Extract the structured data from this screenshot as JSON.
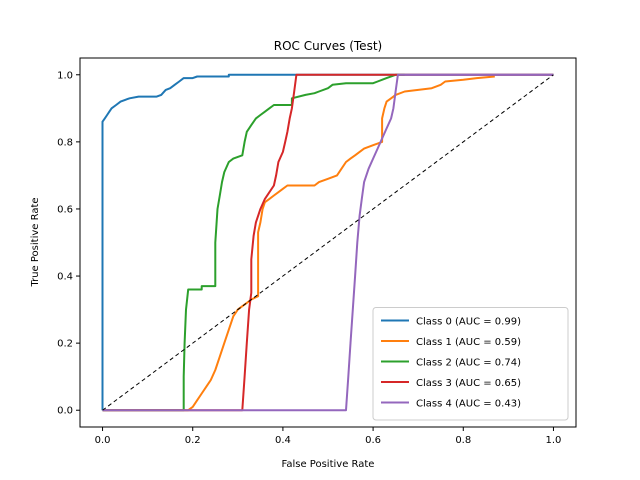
{
  "chart_data": {
    "type": "line",
    "title": "ROC Curves (Test)",
    "xlabel": "False Positive Rate",
    "ylabel": "True Positive Rate",
    "xlim": [
      -0.05,
      1.05
    ],
    "ylim": [
      -0.05,
      1.05
    ],
    "xticks": [
      "0.0",
      "0.2",
      "0.4",
      "0.6",
      "0.8",
      "1.0"
    ],
    "yticks": [
      "0.0",
      "0.2",
      "0.4",
      "0.6",
      "0.8",
      "1.0"
    ],
    "grid": false,
    "legend_position": "lower-right",
    "reference_line": {
      "points": [
        [
          0,
          0
        ],
        [
          1,
          1
        ]
      ],
      "style": "dashed",
      "color": "#000000"
    },
    "series": [
      {
        "name": "Class 0 (AUC = 0.99)",
        "color": "#1f77b4",
        "points": [
          [
            0,
            0
          ],
          [
            0,
            0.86
          ],
          [
            0.005,
            0.87
          ],
          [
            0.01,
            0.88
          ],
          [
            0.015,
            0.89
          ],
          [
            0.02,
            0.9
          ],
          [
            0.03,
            0.91
          ],
          [
            0.04,
            0.92
          ],
          [
            0.05,
            0.925
          ],
          [
            0.06,
            0.93
          ],
          [
            0.08,
            0.935
          ],
          [
            0.1,
            0.935
          ],
          [
            0.12,
            0.935
          ],
          [
            0.13,
            0.94
          ],
          [
            0.14,
            0.955
          ],
          [
            0.15,
            0.96
          ],
          [
            0.16,
            0.97
          ],
          [
            0.17,
            0.98
          ],
          [
            0.18,
            0.99
          ],
          [
            0.2,
            0.99
          ],
          [
            0.21,
            0.995
          ],
          [
            0.28,
            0.995
          ],
          [
            0.28,
            1.0
          ],
          [
            1.0,
            1.0
          ]
        ]
      },
      {
        "name": "Class 1 (AUC = 0.59)",
        "color": "#ff7f0e",
        "points": [
          [
            0,
            0
          ],
          [
            0.19,
            0
          ],
          [
            0.2,
            0.01
          ],
          [
            0.21,
            0.03
          ],
          [
            0.22,
            0.05
          ],
          [
            0.23,
            0.07
          ],
          [
            0.24,
            0.09
          ],
          [
            0.25,
            0.12
          ],
          [
            0.26,
            0.16
          ],
          [
            0.27,
            0.2
          ],
          [
            0.28,
            0.24
          ],
          [
            0.29,
            0.28
          ],
          [
            0.3,
            0.3
          ],
          [
            0.31,
            0.31
          ],
          [
            0.32,
            0.32
          ],
          [
            0.33,
            0.33
          ],
          [
            0.345,
            0.34
          ],
          [
            0.345,
            0.53
          ],
          [
            0.35,
            0.56
          ],
          [
            0.355,
            0.6
          ],
          [
            0.36,
            0.62
          ],
          [
            0.37,
            0.63
          ],
          [
            0.38,
            0.64
          ],
          [
            0.39,
            0.65
          ],
          [
            0.4,
            0.66
          ],
          [
            0.41,
            0.67
          ],
          [
            0.47,
            0.67
          ],
          [
            0.48,
            0.68
          ],
          [
            0.5,
            0.69
          ],
          [
            0.52,
            0.7
          ],
          [
            0.53,
            0.72
          ],
          [
            0.54,
            0.74
          ],
          [
            0.55,
            0.75
          ],
          [
            0.56,
            0.76
          ],
          [
            0.57,
            0.77
          ],
          [
            0.58,
            0.78
          ],
          [
            0.6,
            0.79
          ],
          [
            0.62,
            0.8
          ],
          [
            0.62,
            0.82
          ],
          [
            0.62,
            0.87
          ],
          [
            0.625,
            0.9
          ],
          [
            0.63,
            0.92
          ],
          [
            0.64,
            0.93
          ],
          [
            0.65,
            0.94
          ],
          [
            0.67,
            0.95
          ],
          [
            0.7,
            0.955
          ],
          [
            0.73,
            0.96
          ],
          [
            0.75,
            0.97
          ],
          [
            0.76,
            0.98
          ],
          [
            0.8,
            0.985
          ],
          [
            0.83,
            0.99
          ],
          [
            0.87,
            0.995
          ]
        ]
      },
      {
        "name": "Class 2 (AUC = 0.74)",
        "color": "#2ca02c",
        "points": [
          [
            0,
            0
          ],
          [
            0.18,
            0
          ],
          [
            0.18,
            0.1
          ],
          [
            0.182,
            0.2
          ],
          [
            0.185,
            0.3
          ],
          [
            0.19,
            0.36
          ],
          [
            0.22,
            0.36
          ],
          [
            0.22,
            0.37
          ],
          [
            0.25,
            0.37
          ],
          [
            0.25,
            0.5
          ],
          [
            0.255,
            0.6
          ],
          [
            0.26,
            0.64
          ],
          [
            0.265,
            0.68
          ],
          [
            0.27,
            0.71
          ],
          [
            0.28,
            0.74
          ],
          [
            0.29,
            0.75
          ],
          [
            0.31,
            0.76
          ],
          [
            0.315,
            0.8
          ],
          [
            0.32,
            0.83
          ],
          [
            0.33,
            0.85
          ],
          [
            0.34,
            0.87
          ],
          [
            0.35,
            0.88
          ],
          [
            0.36,
            0.89
          ],
          [
            0.37,
            0.9
          ],
          [
            0.38,
            0.91
          ],
          [
            0.42,
            0.91
          ],
          [
            0.42,
            0.93
          ],
          [
            0.45,
            0.94
          ],
          [
            0.47,
            0.945
          ],
          [
            0.48,
            0.95
          ],
          [
            0.5,
            0.96
          ],
          [
            0.51,
            0.97
          ],
          [
            0.54,
            0.975
          ],
          [
            0.6,
            0.975
          ],
          [
            0.61,
            0.98
          ],
          [
            0.63,
            0.99
          ],
          [
            0.65,
            1.0
          ],
          [
            0.67,
            1.0
          ]
        ]
      },
      {
        "name": "Class 3 (AUC = 0.65)",
        "color": "#d62728",
        "points": [
          [
            0,
            0
          ],
          [
            0.31,
            0
          ],
          [
            0.315,
            0.1
          ],
          [
            0.32,
            0.2
          ],
          [
            0.325,
            0.3
          ],
          [
            0.33,
            0.35
          ],
          [
            0.33,
            0.45
          ],
          [
            0.335,
            0.52
          ],
          [
            0.34,
            0.56
          ],
          [
            0.35,
            0.6
          ],
          [
            0.36,
            0.63
          ],
          [
            0.37,
            0.65
          ],
          [
            0.38,
            0.67
          ],
          [
            0.385,
            0.7
          ],
          [
            0.39,
            0.74
          ],
          [
            0.4,
            0.77
          ],
          [
            0.405,
            0.8
          ],
          [
            0.41,
            0.83
          ],
          [
            0.415,
            0.87
          ],
          [
            0.42,
            0.9
          ],
          [
            0.425,
            0.95
          ],
          [
            0.43,
            1.0
          ],
          [
            1.0,
            1.0
          ]
        ]
      },
      {
        "name": "Class 4 (AUC = 0.43)",
        "color": "#9467bd",
        "points": [
          [
            0,
            0
          ],
          [
            0.54,
            0
          ],
          [
            0.545,
            0.1
          ],
          [
            0.55,
            0.2
          ],
          [
            0.555,
            0.3
          ],
          [
            0.56,
            0.4
          ],
          [
            0.565,
            0.5
          ],
          [
            0.57,
            0.58
          ],
          [
            0.575,
            0.63
          ],
          [
            0.58,
            0.68
          ],
          [
            0.59,
            0.72
          ],
          [
            0.6,
            0.75
          ],
          [
            0.61,
            0.78
          ],
          [
            0.62,
            0.81
          ],
          [
            0.63,
            0.84
          ],
          [
            0.64,
            0.87
          ],
          [
            0.645,
            0.9
          ],
          [
            0.65,
            0.95
          ],
          [
            0.655,
            1.0
          ],
          [
            1.0,
            1.0
          ]
        ]
      }
    ]
  }
}
